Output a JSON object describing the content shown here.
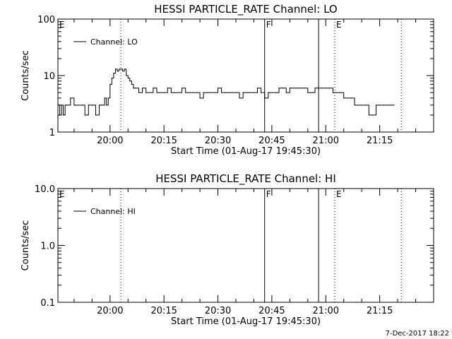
{
  "chart_data": [
    {
      "type": "line",
      "title": "HESSI PARTICLE_RATE Channel: LO",
      "xlabel": "Start Time (01-Aug-17 19:45:30)",
      "ylabel": "Counts/sec",
      "y_scale": "log",
      "ylim": [
        1,
        100
      ],
      "y_ticks": [
        "1",
        "10",
        "100"
      ],
      "xlim_minutes": [
        19.5,
        24.0
      ],
      "x_ticks": [
        "20:00",
        "20:15",
        "20:30",
        "20:45",
        "21:00",
        "21:15"
      ],
      "legend": {
        "entry": "Channel: LO",
        "placement": "top-left"
      },
      "series": [
        {
          "name": "Channel: LO",
          "x": [
            "19:45.5",
            "19:46.0",
            "19:46.5",
            "19:47.0",
            "19:47.5",
            "19:48.0",
            "19:48.5",
            "19:49.0",
            "19:50.0",
            "19:50.5",
            "19:51.0",
            "19:52.0",
            "19:52.5",
            "19:53.0",
            "19:54.0",
            "19:55.0",
            "19:55.5",
            "19:56.0",
            "19:57.0",
            "19:57.5",
            "19:58.0",
            "19:58.5",
            "19:59.0",
            "19:59.5",
            "20:00.0",
            "20:00.5",
            "20:01.0",
            "20:01.5",
            "20:02.0",
            "20:02.5",
            "20:03.0",
            "20:03.5",
            "20:04.0",
            "20:04.5",
            "20:05.0",
            "20:05.5",
            "20:06.0",
            "20:06.5",
            "20:07.0",
            "20:08.0",
            "20:09.0",
            "20:10.0",
            "20:11.0",
            "20:12.0",
            "20:13.0",
            "20:14.0",
            "20:15.0",
            "20:16.0",
            "20:17.0",
            "20:18.0",
            "20:19.0",
            "20:20.0",
            "20:21.0",
            "20:22.0",
            "20:23.0",
            "20:24.0",
            "20:25.0",
            "20:26.0",
            "20:27.0",
            "20:28.0",
            "20:29.0",
            "20:30.0",
            "20:31.0",
            "20:32.0",
            "20:33.0",
            "20:34.0",
            "20:35.0",
            "20:36.0",
            "20:37.0",
            "20:38.0",
            "20:39.0",
            "20:40.0",
            "20:41.0",
            "20:42.0",
            "20:43.0",
            "20:44.0",
            "20:45.0",
            "20:46.0",
            "20:47.0",
            "20:48.0",
            "20:49.0",
            "20:50.0",
            "20:51.0",
            "20:52.0",
            "20:53.0",
            "20:54.0",
            "20:55.0",
            "20:56.0",
            "20:57.0",
            "20:58.0",
            "20:59.0",
            "21:00.0",
            "21:01.0",
            "21:02.0",
            "21:03.0",
            "21:04.0",
            "21:05.0",
            "21:06.0",
            "21:07.0",
            "21:08.0",
            "21:09.0",
            "21:10.0",
            "21:11.0",
            "21:12.0",
            "21:13.0",
            "21:14.0",
            "21:15.0",
            "21:16.0",
            "21:17.0",
            "21:18.0",
            "21:19.0"
          ],
          "values": [
            3,
            2,
            3,
            2,
            3,
            3,
            3,
            4,
            3,
            3,
            3,
            3,
            3,
            2,
            3,
            3,
            3,
            2,
            3,
            3,
            3,
            4,
            3,
            4,
            7,
            9,
            11,
            13,
            12,
            13,
            13,
            12,
            13,
            10,
            9,
            8,
            7,
            6,
            6,
            5,
            6,
            5,
            5,
            6,
            5,
            5,
            5,
            6,
            5,
            5,
            5,
            6,
            5,
            5,
            5,
            5,
            4,
            5,
            5,
            5,
            5,
            6,
            5,
            5,
            5,
            5,
            5,
            4,
            5,
            5,
            5,
            5,
            6,
            5,
            4,
            5,
            5,
            5,
            6,
            6,
            5,
            6,
            6,
            6,
            6,
            6,
            5,
            5,
            6,
            6,
            6,
            6,
            6,
            5,
            5,
            5,
            4,
            4,
            4,
            3,
            3,
            3,
            3,
            2,
            2,
            3,
            3,
            3,
            3,
            3,
            3
          ]
        }
      ],
      "markers": [
        {
          "label": "E",
          "time": "19:45.5",
          "style": "solid"
        },
        {
          "label": "",
          "time": "20:03.0",
          "style": "dotted"
        },
        {
          "label": "F",
          "time": "20:43.0",
          "style": "solid"
        },
        {
          "label": "",
          "time": "20:58.0",
          "style": "solid"
        },
        {
          "label": "E",
          "time": "21:02.5",
          "style": "dotted"
        },
        {
          "label": "",
          "time": "21:21.0",
          "style": "dotted"
        }
      ]
    },
    {
      "type": "line",
      "title": "HESSI PARTICLE_RATE Channel: HI",
      "xlabel": "Start Time (01-Aug-17 19:45:30)",
      "ylabel": "Counts/sec",
      "y_scale": "log",
      "ylim": [
        0.1,
        10
      ],
      "y_ticks": [
        "0.1",
        "1.0",
        "10.0"
      ],
      "xlim_minutes": [
        19.5,
        24.0
      ],
      "x_ticks": [
        "20:00",
        "20:15",
        "20:30",
        "20:45",
        "21:00",
        "21:15"
      ],
      "legend": {
        "entry": "Channel: HI",
        "placement": "top-left"
      },
      "series": [
        {
          "name": "Channel: HI",
          "x": [],
          "values": []
        }
      ],
      "markers": [
        {
          "label": "E",
          "time": "19:45.5",
          "style": "solid"
        },
        {
          "label": "",
          "time": "20:03.0",
          "style": "dotted"
        },
        {
          "label": "F",
          "time": "20:43.0",
          "style": "solid"
        },
        {
          "label": "",
          "time": "20:58.0",
          "style": "solid"
        },
        {
          "label": "E",
          "time": "21:02.5",
          "style": "dotted"
        },
        {
          "label": "",
          "time": "21:21.0",
          "style": "dotted"
        }
      ]
    }
  ],
  "footer": {
    "timestamp": "7-Dec-2017 18:22"
  }
}
